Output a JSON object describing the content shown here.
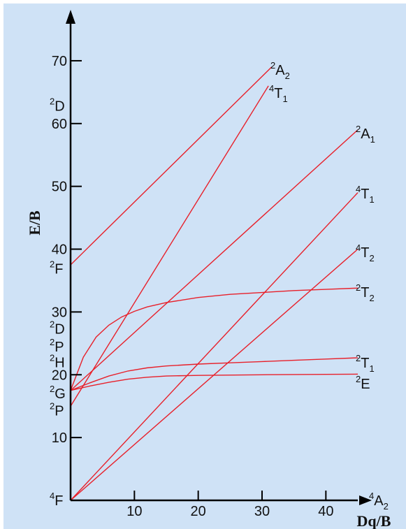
{
  "chart_data": {
    "type": "line",
    "title": "",
    "xlabel": "Dq/B",
    "ylabel": "E/B",
    "xlim": [
      0,
      45
    ],
    "ylim": [
      0,
      75
    ],
    "x_ticks": [
      10,
      20,
      30,
      40
    ],
    "y_ticks": [
      10,
      20,
      30,
      40,
      50,
      60,
      70
    ],
    "grid": false,
    "colors": {
      "series": "#e8202a",
      "axis": "#000000",
      "background": "#cfe2f6"
    },
    "left_terms": [
      {
        "sup": "2",
        "base": "D",
        "y": 62.8
      },
      {
        "sup": "2",
        "base": "F",
        "y": 36.9
      },
      {
        "sup": "2",
        "base": "D",
        "y": 27.3
      },
      {
        "sup": "2",
        "base": "P",
        "y": 24.5
      },
      {
        "sup": "2",
        "base": "H",
        "y": 22.0
      },
      {
        "sup": "2",
        "base": "G",
        "y": 17.0
      },
      {
        "sup": "2",
        "base": "P",
        "y": 14.3
      },
      {
        "sup": "4",
        "base": "F",
        "y": 0
      }
    ],
    "series": [
      {
        "sup": "2",
        "base": "A",
        "sub": "2",
        "points": [
          [
            0,
            37.5
          ],
          [
            31.5,
            69
          ]
        ]
      },
      {
        "sup": "4",
        "base": "T",
        "sub": "1",
        "points": [
          [
            0,
            15
          ],
          [
            31,
            66
          ]
        ]
      },
      {
        "sup": "2",
        "base": "A",
        "sub": "1",
        "points": [
          [
            0,
            17.5
          ],
          [
            45,
            59
          ]
        ]
      },
      {
        "sup": "4",
        "base": "T",
        "sub": "1",
        "points": [
          [
            0,
            0
          ],
          [
            45,
            49
          ]
        ]
      },
      {
        "sup": "4",
        "base": "T",
        "sub": "2",
        "points": [
          [
            0,
            0
          ],
          [
            45,
            40
          ]
        ]
      },
      {
        "sup": "2",
        "base": "T",
        "sub": "2",
        "points": [
          [
            0,
            17.5
          ],
          [
            2,
            22.8
          ],
          [
            4,
            26.0
          ],
          [
            6,
            27.9
          ],
          [
            8,
            29.2
          ],
          [
            10,
            30.1
          ],
          [
            12,
            30.8
          ],
          [
            15,
            31.5
          ],
          [
            20,
            32.3
          ],
          [
            25,
            32.8
          ],
          [
            30,
            33.1
          ],
          [
            35,
            33.4
          ],
          [
            40,
            33.6
          ],
          [
            45,
            33.8
          ]
        ]
      },
      {
        "sup": "2",
        "base": "T",
        "sub": "1",
        "points": [
          [
            0,
            17.5
          ],
          [
            3,
            18.7
          ],
          [
            6,
            19.8
          ],
          [
            9,
            20.6
          ],
          [
            12,
            21.1
          ],
          [
            15,
            21.4
          ],
          [
            20,
            21.7
          ],
          [
            25,
            21.9
          ],
          [
            30,
            22.1
          ],
          [
            35,
            22.3
          ],
          [
            40,
            22.5
          ],
          [
            45,
            22.7
          ]
        ]
      },
      {
        "sup": "2",
        "base": "E",
        "sub": "",
        "points": [
          [
            0,
            17.5
          ],
          [
            3,
            18.2
          ],
          [
            6,
            18.8
          ],
          [
            9,
            19.3
          ],
          [
            12,
            19.6
          ],
          [
            15,
            19.8
          ],
          [
            20,
            19.9
          ],
          [
            30,
            20.0
          ],
          [
            45,
            20.1
          ]
        ]
      }
    ],
    "end_label": {
      "sup": "4",
      "base": "A",
      "sub": "2"
    }
  }
}
